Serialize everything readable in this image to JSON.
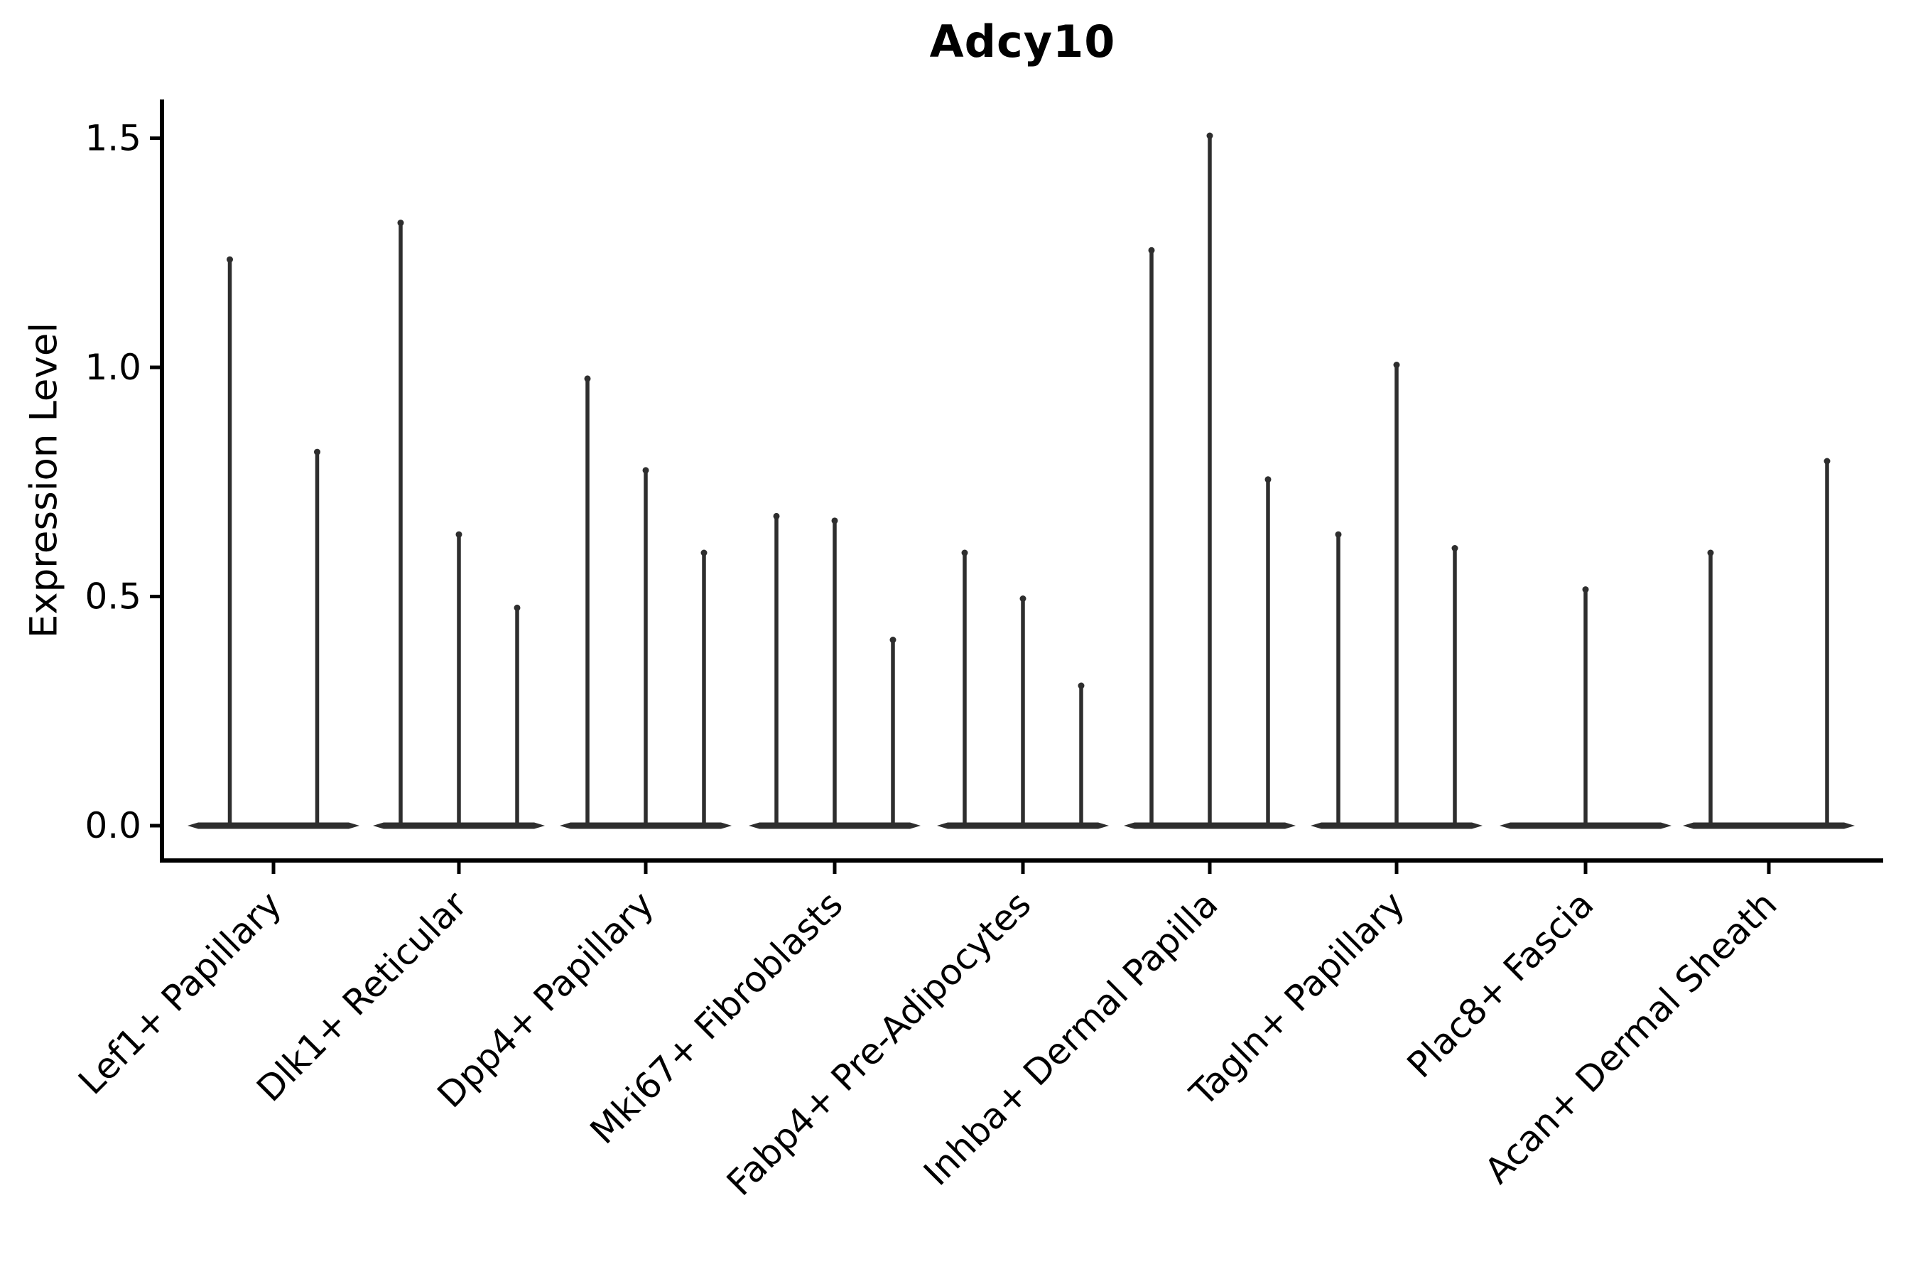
{
  "chart_data": {
    "type": "violin",
    "title": "Adcy10",
    "ylabel": "Expression Level",
    "xlabel": "",
    "grid": false,
    "legend": null,
    "ylim": [
      -0.076,
      1.585
    ],
    "yticks": [
      0.0,
      0.5,
      1.0,
      1.5
    ],
    "ytick_labels": [
      "0.0",
      "0.5",
      "1.0",
      "1.5"
    ],
    "categories": [
      "Lef1+ Papillary",
      "Dlk1+ Reticular",
      "Dpp4+ Papillary",
      "Mki67+ Fibroblasts",
      "Fabp4+ Pre-Adipocytes",
      "Inhba+ Dermal Papilla",
      "Tagln+ Papillary",
      "Plac8+ Fascia",
      "Acan+ Dermal Sheath"
    ],
    "groups": [
      {
        "label": "Lef1+ Papillary",
        "violin_max_expression": [
          1.24,
          0.82
        ]
      },
      {
        "label": "Dlk1+ Reticular",
        "violin_max_expression": [
          1.32,
          0.64,
          0.48
        ]
      },
      {
        "label": "Dpp4+ Papillary",
        "violin_max_expression": [
          0.98,
          0.78,
          0.6
        ]
      },
      {
        "label": "Mki67+ Fibroblasts",
        "violin_max_expression": [
          0.68,
          0.67,
          0.41
        ]
      },
      {
        "label": "Fabp4+ Pre-Adipocytes",
        "violin_max_expression": [
          0.6,
          0.5,
          0.31
        ]
      },
      {
        "label": "Inhba+ Dermal Papilla",
        "violin_max_expression": [
          1.26,
          1.51,
          0.76
        ]
      },
      {
        "label": "Tagln+ Papillary",
        "violin_max_expression": [
          0.64,
          1.01,
          0.61
        ]
      },
      {
        "label": "Plac8+ Fascia",
        "violin_max_expression": [
          0.0,
          0.52,
          0.0
        ]
      },
      {
        "label": "Acan+ Dermal Sheath",
        "violin_max_expression": [
          0.6,
          0.0,
          0.8
        ]
      }
    ],
    "colors": {
      "violin": "#2e2e2e",
      "axis": "#000000",
      "text": "#000000",
      "background": "#ffffff"
    }
  }
}
